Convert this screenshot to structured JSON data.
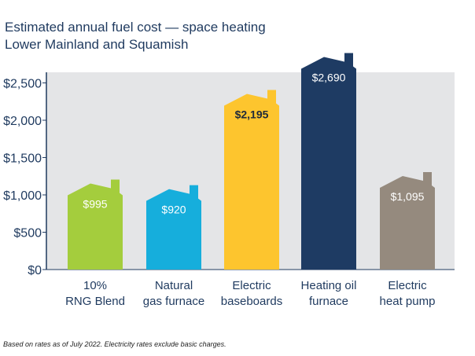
{
  "title": "Estimated annual fuel cost — space heating",
  "subtitle": "Lower Mainland and Squamish",
  "footnote": "Based on rates as of July 2022. Electricity rates exclude basic charges.",
  "chart_data": {
    "type": "bar",
    "title": "Estimated annual fuel cost — space heating",
    "subtitle": "Lower Mainland and Squamish",
    "categories": [
      [
        "10%",
        "RNG Blend"
      ],
      [
        "Natural",
        "gas furnace"
      ],
      [
        "Electric",
        "baseboards"
      ],
      [
        "Heating oil",
        "furnace"
      ],
      [
        "Electric",
        "heat pump"
      ]
    ],
    "values": [
      995,
      920,
      2195,
      2690,
      1095
    ],
    "value_labels": [
      "$995",
      "$920",
      "$2,195",
      "$2,690",
      "$1,095"
    ],
    "colors": [
      "#a4cd3d",
      "#16aedc",
      "#fdc52e",
      "#1e3b63",
      "#958a7e"
    ],
    "value_label_colors": [
      "#ffffff",
      "#ffffff",
      "#1f2a3a",
      "#ffffff",
      "#ffffff"
    ],
    "bar_shape": "house",
    "yticks": [
      0,
      500,
      1000,
      1500,
      2000,
      2500
    ],
    "ytick_labels": [
      "$0",
      "$500",
      "$1,000",
      "$1,500",
      "$2,000",
      "$2,500"
    ],
    "ylim": [
      0,
      2750
    ],
    "xlabel": "",
    "ylabel": "",
    "grid": false,
    "plot_background": "#e4e5e7"
  }
}
